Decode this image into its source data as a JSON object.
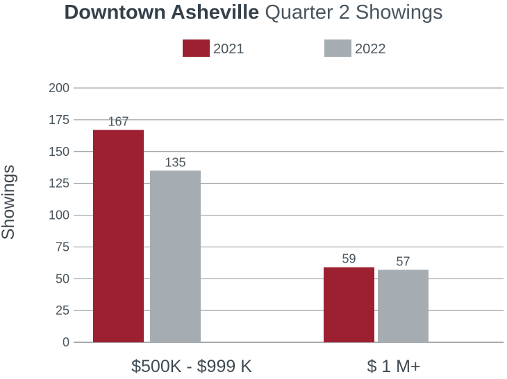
{
  "title_bold": "Downtown Asheville",
  "title_rest": "Quarter 2 Showings",
  "colors": {
    "2021": "#9c2030",
    "2022": "#a5adb2",
    "grid": "#8a8f93"
  },
  "chart_data": {
    "type": "bar",
    "title": "Downtown Asheville Quarter 2 Showings",
    "xlabel": "",
    "ylabel": "Showings",
    "categories": [
      "$500K - $999 K",
      "$ 1 M+"
    ],
    "series": [
      {
        "name": "2021",
        "values": [
          167,
          59
        ]
      },
      {
        "name": "2022",
        "values": [
          135,
          57
        ]
      }
    ],
    "ylim": [
      0,
      200
    ],
    "yticks": [
      0,
      25,
      50,
      75,
      100,
      125,
      150,
      175,
      200
    ],
    "grid": true,
    "legend": "top-center"
  }
}
